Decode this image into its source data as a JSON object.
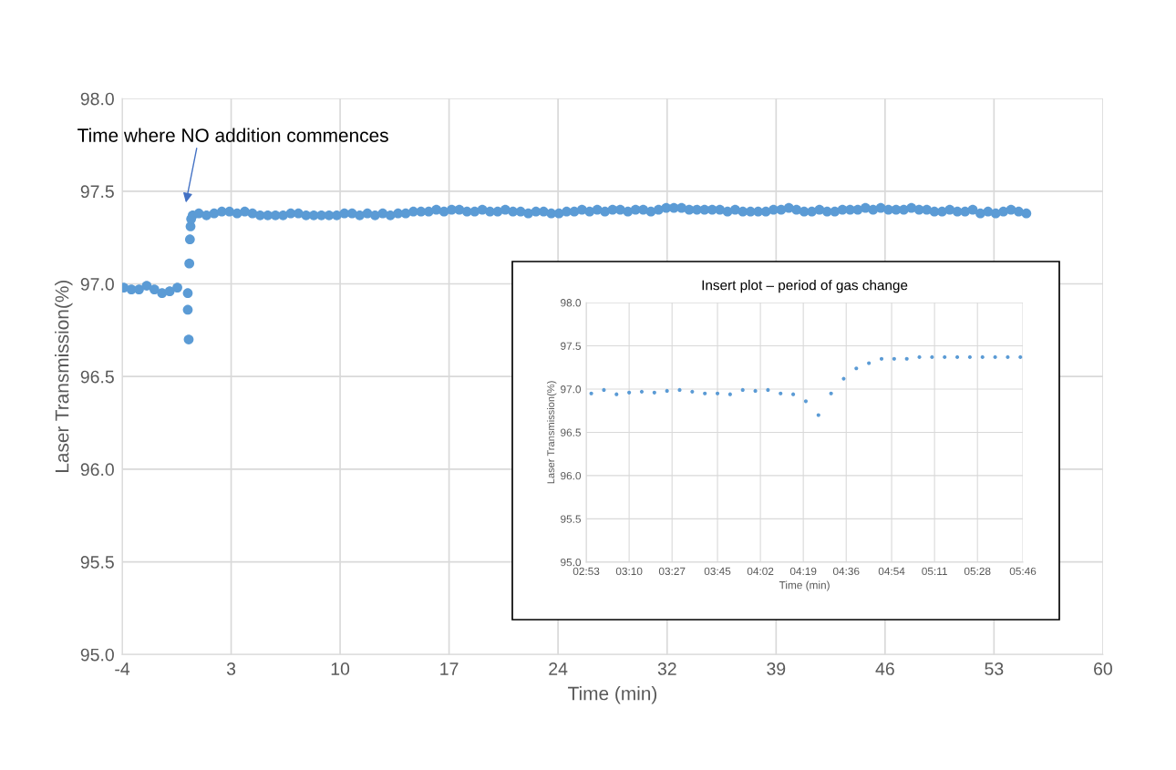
{
  "chart_data": [
    {
      "type": "scatter",
      "xlabel": "Time (min)",
      "ylabel": "Laser Transmission(%)",
      "color": "#5b9bd5",
      "marker": "circle",
      "grid": true,
      "x": [
        -3.9,
        -3.4,
        -2.9,
        -2.4,
        -1.9,
        -1.4,
        -0.9,
        -0.4,
        0.28,
        0.28,
        0.34,
        0.38,
        0.42,
        0.46,
        0.5,
        0.6,
        1.0,
        1.5,
        2.0,
        2.5,
        3.0,
        3.5,
        4.0,
        4.5,
        5.0,
        5.5,
        6.0,
        6.5,
        7.0,
        7.5,
        8.0,
        8.5,
        9.0,
        9.5,
        10.0,
        10.5,
        11.0,
        11.5,
        12.0,
        12.5,
        13.0,
        13.5,
        14.0,
        14.5,
        15.0,
        15.5,
        16.0,
        16.5,
        17.0,
        17.5,
        18.0,
        18.5,
        19.0,
        19.5,
        20.0,
        20.5,
        21.0,
        21.5,
        22.0,
        22.5,
        23.0,
        23.5,
        24.0,
        24.5,
        25.0,
        25.5,
        26.0,
        26.5,
        27.0,
        27.5,
        28.0,
        28.5,
        29.0,
        29.5,
        30.0,
        30.5,
        31.0,
        31.5,
        32.0,
        32.5,
        33.0,
        33.5,
        34.0,
        34.5,
        35.0,
        35.5,
        36.0,
        36.5,
        37.0,
        37.5,
        38.0,
        38.5,
        39.0,
        39.5,
        40.0,
        40.5,
        41.0,
        41.5,
        42.0,
        42.5,
        43.0,
        43.5,
        44.0,
        44.5,
        45.0,
        45.5,
        46.0,
        46.5,
        47.0,
        47.5,
        48.0,
        48.5,
        49.0,
        49.5,
        50.0,
        50.5,
        51.0,
        51.5,
        52.0,
        52.5,
        53.0,
        53.5,
        54.0,
        54.5,
        55.0
      ],
      "values": [
        96.98,
        96.97,
        96.97,
        96.99,
        96.97,
        96.95,
        96.96,
        96.98,
        96.95,
        96.86,
        96.7,
        97.11,
        97.24,
        97.31,
        97.35,
        97.37,
        97.38,
        97.37,
        97.38,
        97.39,
        97.39,
        97.38,
        97.39,
        97.38,
        97.37,
        97.37,
        97.37,
        97.37,
        97.38,
        97.38,
        97.37,
        97.37,
        97.37,
        97.37,
        97.37,
        97.38,
        97.38,
        97.37,
        97.38,
        97.37,
        97.38,
        97.37,
        97.38,
        97.38,
        97.39,
        97.39,
        97.39,
        97.4,
        97.39,
        97.4,
        97.4,
        97.39,
        97.39,
        97.4,
        97.39,
        97.39,
        97.4,
        97.39,
        97.39,
        97.38,
        97.39,
        97.39,
        97.38,
        97.38,
        97.39,
        97.39,
        97.4,
        97.39,
        97.4,
        97.39,
        97.4,
        97.4,
        97.39,
        97.4,
        97.4,
        97.39,
        97.4,
        97.41,
        97.41,
        97.41,
        97.4,
        97.4,
        97.4,
        97.4,
        97.4,
        97.39,
        97.4,
        97.39,
        97.39,
        97.39,
        97.39,
        97.4,
        97.4,
        97.41,
        97.4,
        97.39,
        97.39,
        97.4,
        97.39,
        97.39,
        97.4,
        97.4,
        97.4,
        97.41,
        97.4,
        97.41,
        97.4,
        97.4,
        97.4,
        97.41,
        97.4,
        97.4,
        97.39,
        97.39,
        97.4,
        97.39,
        97.39,
        97.4,
        97.38,
        97.39,
        97.38,
        97.39,
        97.4,
        97.39,
        97.38
      ],
      "xlim": [
        -4,
        60
      ],
      "ylim": [
        95.0,
        98.0
      ],
      "xticks": [
        -4,
        {
          "value": 3.11,
          "label": "3"
        },
        {
          "value": 10.22,
          "label": "10"
        },
        {
          "value": 17.33,
          "label": "17"
        },
        {
          "value": 24.44,
          "label": "24"
        },
        {
          "value": 31.56,
          "label": "32"
        },
        {
          "value": 38.67,
          "label": "39"
        },
        {
          "value": 45.78,
          "label": "46"
        },
        {
          "value": 52.89,
          "label": "53"
        },
        60
      ],
      "yticks": [
        {
          "value": 95,
          "label": "95.0"
        },
        95.5,
        {
          "value": 96,
          "label": "96.0"
        },
        96.5,
        {
          "value": 97,
          "label": "97.0"
        },
        97.5,
        {
          "value": 98,
          "label": "98.0"
        }
      ],
      "annotations": [
        "Time where NO addition commences"
      ]
    },
    {
      "type": "scatter",
      "title": "Insert plot – period of gas change",
      "xlabel": "Time (min)",
      "ylabel": "Laser Transmission(%)",
      "color": "#5b9bd5",
      "marker": "circle",
      "grid": true,
      "x": [
        175,
        180,
        185,
        190,
        195,
        200,
        205,
        210,
        215,
        220,
        225,
        230,
        235,
        240,
        245,
        250,
        255,
        260,
        265,
        270,
        275,
        280,
        285,
        290,
        295,
        300,
        305,
        310,
        315,
        320,
        325,
        330,
        335,
        340,
        345
      ],
      "values": [
        96.95,
        96.99,
        96.94,
        96.96,
        96.97,
        96.96,
        96.98,
        96.99,
        96.97,
        96.95,
        96.95,
        96.94,
        96.99,
        96.98,
        96.99,
        96.95,
        96.94,
        96.86,
        96.7,
        96.95,
        97.12,
        97.24,
        97.3,
        97.35,
        97.35,
        97.35,
        97.37,
        97.37,
        97.37,
        97.37,
        97.37,
        97.37,
        97.37,
        97.37,
        97.37
      ],
      "xlim": [
        173,
        346
      ],
      "ylim": [
        95.0,
        98.0
      ],
      "xticks": [
        {
          "value": 173,
          "label": "02:53"
        },
        {
          "value": 190,
          "label": "03:10"
        },
        {
          "value": 207,
          "label": "03:27"
        },
        {
          "value": 225,
          "label": "03:45"
        },
        {
          "value": 242,
          "label": "04:02"
        },
        {
          "value": 259,
          "label": "04:19"
        },
        {
          "value": 276,
          "label": "04:36"
        },
        {
          "value": 294,
          "label": "04:54"
        },
        {
          "value": 311,
          "label": "05:11"
        },
        {
          "value": 328,
          "label": "05:28"
        },
        {
          "value": 346,
          "label": "05:46"
        }
      ],
      "yticks": [
        {
          "value": 95,
          "label": "95.0"
        },
        95.5,
        {
          "value": 96,
          "label": "96.0"
        },
        96.5,
        {
          "value": 97,
          "label": "97.0"
        },
        97.5,
        {
          "value": 98,
          "label": "98.0"
        }
      ]
    }
  ]
}
